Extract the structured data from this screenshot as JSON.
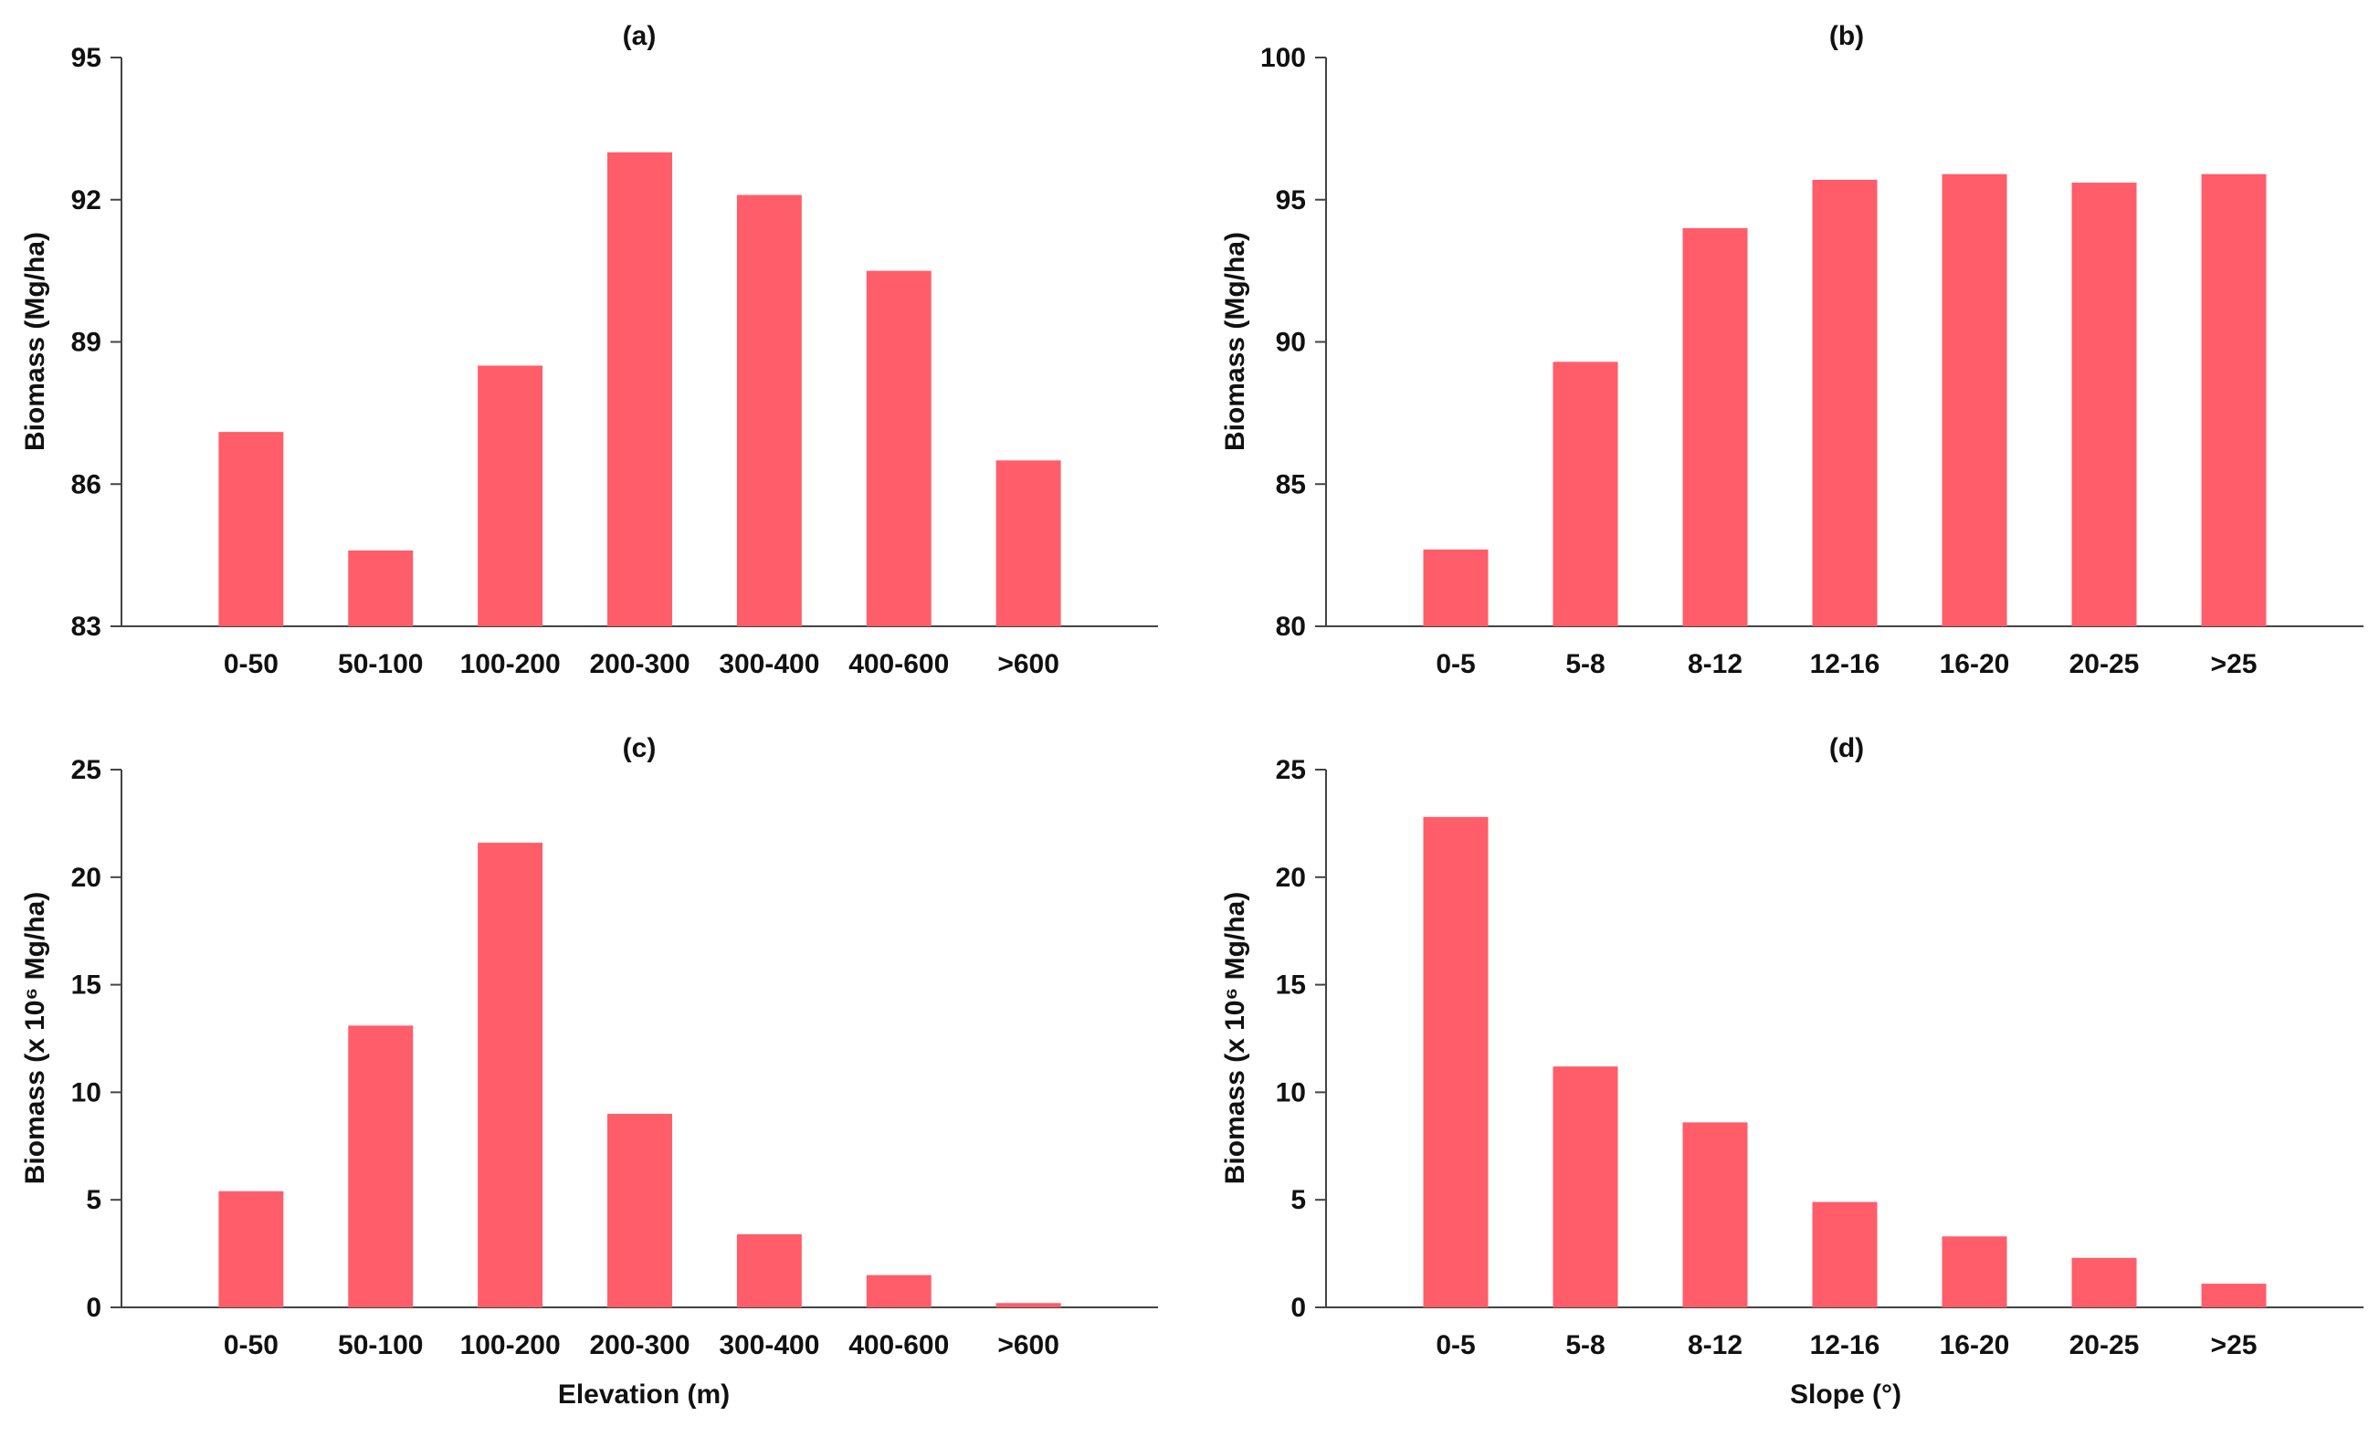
{
  "colors": {
    "bar": "#ff5d6a",
    "axis": "#444444",
    "text": "#111111"
  },
  "chart_data": [
    {
      "id": "a",
      "type": "bar",
      "title": "(a)",
      "xlabel": "",
      "ylabel": "Biomass (Mg/ha)",
      "ylim": [
        83,
        95
      ],
      "yticks": [
        83,
        86,
        89,
        92,
        95
      ],
      "categories": [
        "0-50",
        "50-100",
        "100-200",
        "200-300",
        "300-400",
        "400-600",
        ">600"
      ],
      "values": [
        87.1,
        84.6,
        88.5,
        93.0,
        92.1,
        90.5,
        86.5
      ]
    },
    {
      "id": "b",
      "type": "bar",
      "title": "(b)",
      "xlabel": "",
      "ylabel": "Biomass (Mg/ha)",
      "ylim": [
        80,
        100
      ],
      "yticks": [
        80,
        85,
        90,
        95,
        100
      ],
      "categories": [
        "0-5",
        "5-8",
        "8-12",
        "12-16",
        "16-20",
        "20-25",
        ">25"
      ],
      "values": [
        82.7,
        89.3,
        94.0,
        95.7,
        95.9,
        95.6,
        95.9
      ]
    },
    {
      "id": "c",
      "type": "bar",
      "title": "(c)",
      "xlabel": "Elevation (m)",
      "ylabel": "Biomass (x 10⁶ Mg/ha)",
      "ylim": [
        0,
        25
      ],
      "yticks": [
        0,
        5,
        10,
        15,
        20,
        25
      ],
      "categories": [
        "0-50",
        "50-100",
        "100-200",
        "200-300",
        "300-400",
        "400-600",
        ">600"
      ],
      "values": [
        5.4,
        13.1,
        21.6,
        9.0,
        3.4,
        1.5,
        0.2
      ]
    },
    {
      "id": "d",
      "type": "bar",
      "title": "(d)",
      "xlabel": "Slope (°)",
      "ylabel": "Biomass (x 10⁶ Mg/ha)",
      "ylim": [
        0,
        25
      ],
      "yticks": [
        0,
        5,
        10,
        15,
        20,
        25
      ],
      "categories": [
        "0-5",
        "5-8",
        "8-12",
        "12-16",
        "16-20",
        "20-25",
        ">25"
      ],
      "values": [
        22.8,
        11.2,
        8.6,
        4.9,
        3.3,
        2.3,
        1.1
      ]
    }
  ]
}
